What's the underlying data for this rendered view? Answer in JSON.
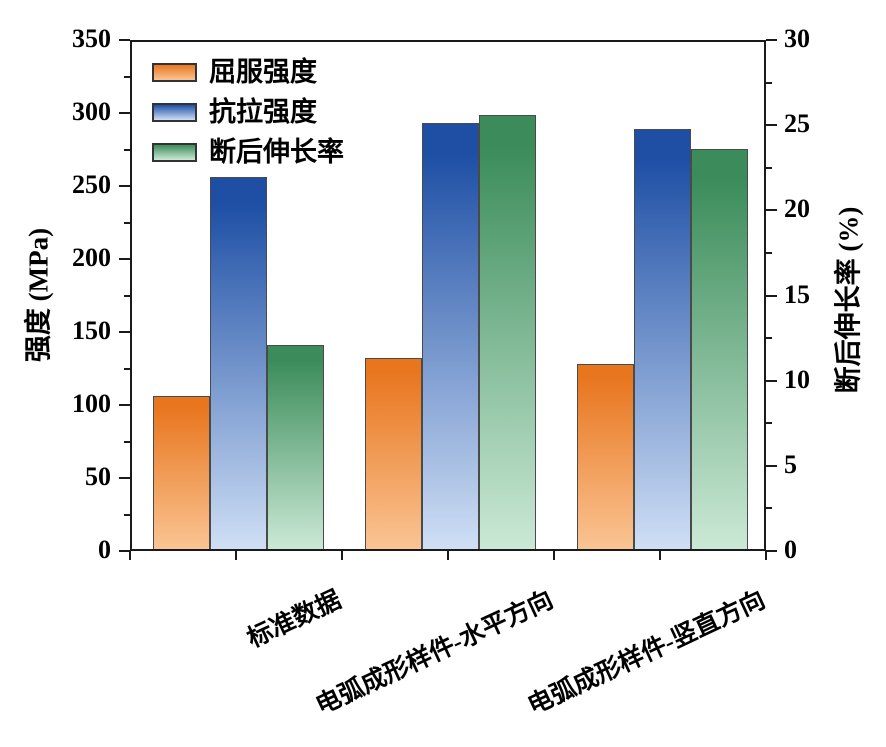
{
  "chart_data": {
    "type": "bar",
    "title": "",
    "categories": [
      "标准数据",
      "电弧成形样件-水平方向",
      "电弧成形样件-竖直方向"
    ],
    "series": [
      {
        "name": "屈服强度",
        "axis": "left",
        "unit": "MPa",
        "values": [
          105,
          131,
          127
        ],
        "color_top": "#E8761F",
        "color_bottom": "#FAC493"
      },
      {
        "name": "抗拉强度",
        "axis": "left",
        "unit": "MPa",
        "values": [
          255,
          292,
          288
        ],
        "color_top": "#1E4FA5",
        "color_bottom": "#CFDFF5"
      },
      {
        "name": "断后伸长率",
        "axis": "right",
        "unit": "%",
        "values": [
          12,
          25.5,
          23.5
        ],
        "color_top": "#3B8C5A",
        "color_bottom": "#CBE9D6"
      }
    ],
    "left_axis": {
      "label": "强度 (MPa)",
      "min": 0,
      "max": 350,
      "major_ticks": [
        0,
        50,
        100,
        150,
        200,
        250,
        300,
        350
      ],
      "minor_ticks": [
        25,
        75,
        125,
        175,
        225,
        275,
        325
      ]
    },
    "right_axis": {
      "label": "断后伸长率 (%)",
      "min": 0,
      "max": 30,
      "major_ticks": [
        0,
        5,
        10,
        15,
        20,
        25,
        30
      ],
      "minor_ticks": [
        2.5,
        7.5,
        12.5,
        17.5,
        22.5,
        27.5
      ]
    },
    "grid": false,
    "legend_position": "top-left",
    "frame_color": "#1a1a1a",
    "background_color": "#ffffff"
  }
}
